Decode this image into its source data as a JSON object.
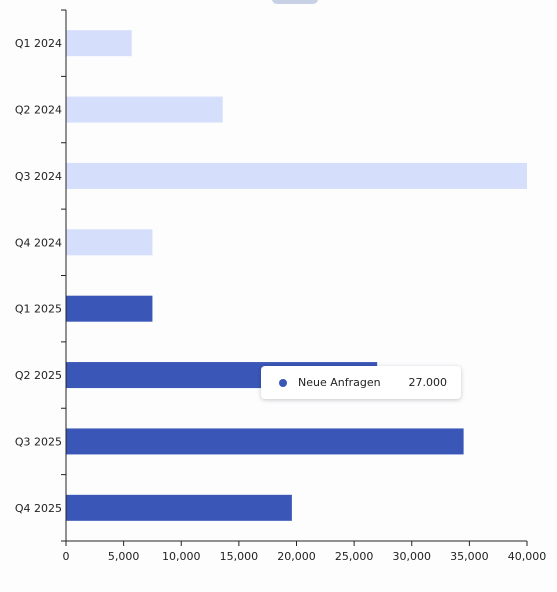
{
  "chart_data": {
    "type": "bar",
    "orientation": "horizontal",
    "categories": [
      "Q1 2024",
      "Q2 2024",
      "Q3 2024",
      "Q4 2024",
      "Q1 2025",
      "Q2 2025",
      "Q3 2025",
      "Q4 2025"
    ],
    "values": [
      5700,
      13600,
      40000,
      7500,
      7500,
      27000,
      34500,
      19600
    ],
    "bar_colors": [
      "#d5defb",
      "#d5defb",
      "#d5defb",
      "#d5defb",
      "#3a57b7",
      "#3a57b7",
      "#3a57b7",
      "#3a57b7"
    ],
    "xlim": [
      0,
      40000
    ],
    "xticks": [
      0,
      5000,
      10000,
      15000,
      20000,
      25000,
      30000,
      35000,
      40000
    ],
    "xtick_labels": [
      "0",
      "5,000",
      "10,000",
      "15,000",
      "20,000",
      "25,000",
      "30,000",
      "35,000",
      "40,000"
    ],
    "grid": false,
    "tooltip": {
      "series": "Neue Anfragen",
      "value": "27.000",
      "color": "#3a57b7"
    }
  }
}
